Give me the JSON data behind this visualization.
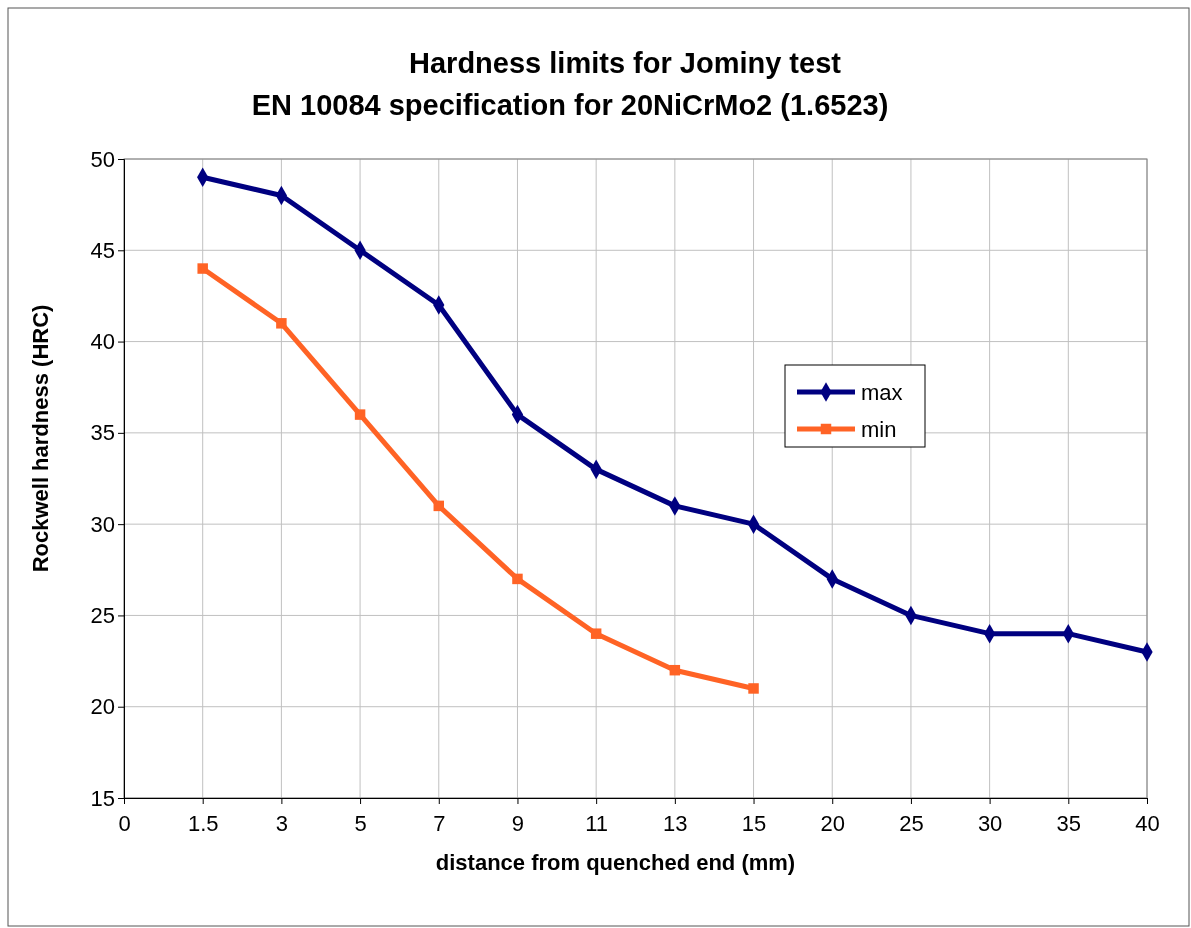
{
  "chart_data": {
    "type": "line",
    "title": "Hardness limits for Jominy  test",
    "subtitle": "EN 10084 specification for 20NiCrMo2 (1.6523)",
    "xlabel": "distance from quenched end (mm)",
    "ylabel": "Rockwell hardness (HRC)",
    "categories": [
      "0",
      "1.5",
      "3",
      "5",
      "7",
      "9",
      "11",
      "13",
      "15",
      "20",
      "25",
      "30",
      "35",
      "40"
    ],
    "series": [
      {
        "name": "max",
        "color": "#000080",
        "marker": "diamond",
        "values": [
          null,
          49,
          48,
          45,
          42,
          36,
          33,
          31,
          30,
          27,
          25,
          24,
          24,
          23
        ]
      },
      {
        "name": "min",
        "color": "#ff6325",
        "marker": "square",
        "values": [
          null,
          44,
          41,
          36,
          31,
          27,
          24,
          22,
          21,
          null,
          null,
          null,
          null,
          null
        ]
      }
    ],
    "ylim": [
      15,
      50
    ],
    "yticks": [
      15,
      20,
      25,
      30,
      35,
      40,
      45,
      50
    ],
    "grid": true,
    "legend": "right",
    "line_style": "solid"
  }
}
